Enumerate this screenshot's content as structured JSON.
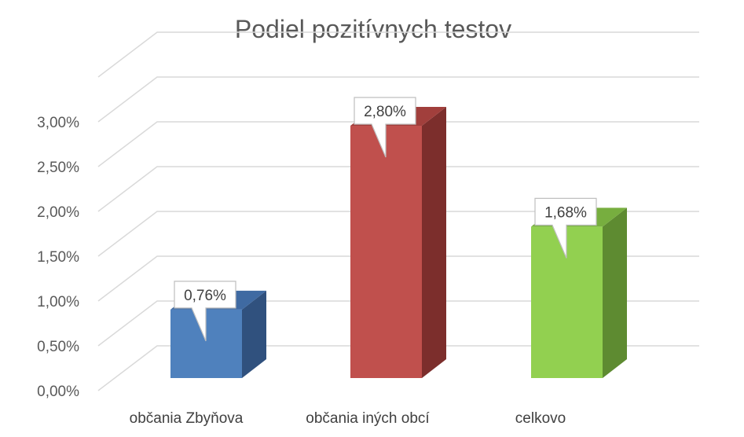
{
  "chart_data": {
    "type": "bar",
    "title": "Podiel pozitívnych testov",
    "categories": [
      "občania Zbyňova",
      "občania iných obcí",
      "celkovo"
    ],
    "values": [
      0.76,
      2.8,
      1.68
    ],
    "data_labels": [
      "0,76%",
      "2,80%",
      "1,68%"
    ],
    "ylim": [
      0,
      3.5
    ],
    "yticks": [
      0,
      0.5,
      1.0,
      1.5,
      2.0,
      2.5,
      3.0
    ],
    "ytick_labels": [
      "0,00%",
      "0,50%",
      "1,00%",
      "1,50%",
      "2,00%",
      "2,50%",
      "3,00%"
    ],
    "grid": true,
    "style": "3d-column",
    "colors": {
      "bars": [
        "#4F81BD",
        "#C0504D",
        "#92D050"
      ],
      "bar_sides": [
        "#30517E",
        "#7C2E2C",
        "#5E8B31"
      ],
      "bar_tops": [
        "#3F6AA2",
        "#A13F3C",
        "#77AE3F"
      ],
      "grid": "#D9D9D9",
      "text": "#595959"
    }
  }
}
